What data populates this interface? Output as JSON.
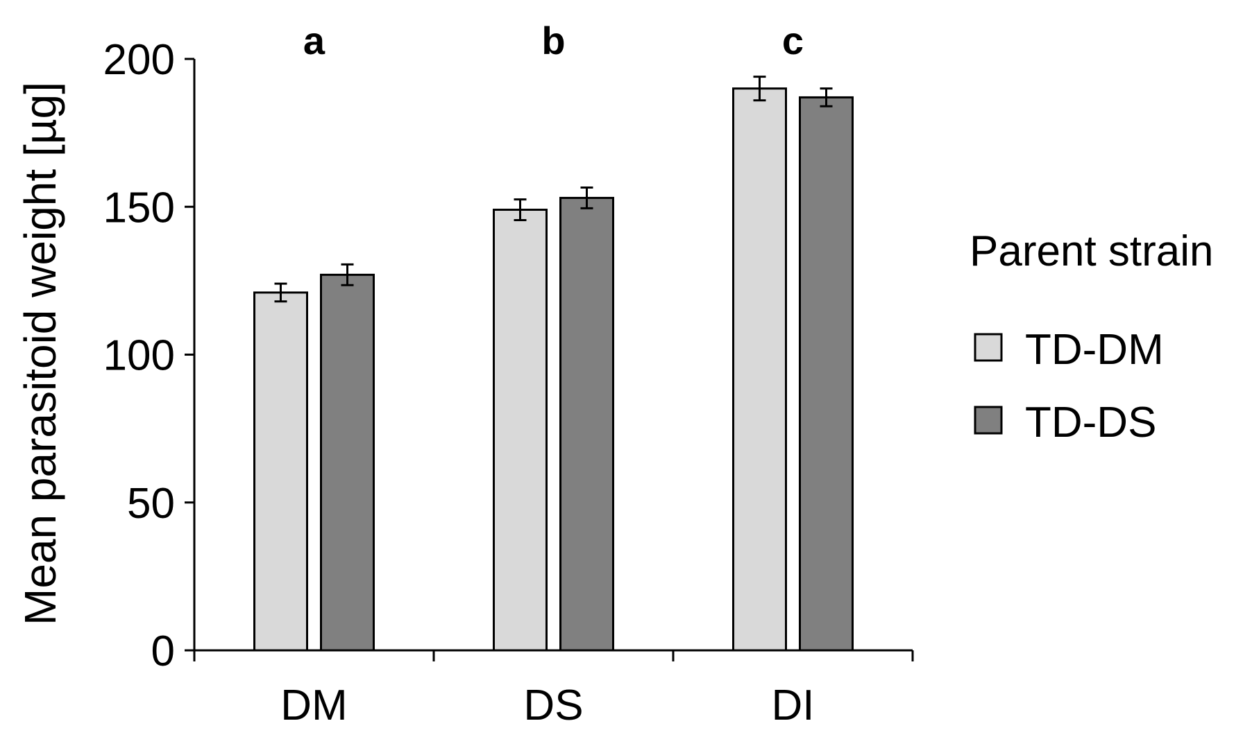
{
  "chart_data": {
    "type": "bar",
    "title": "",
    "xlabel": "",
    "ylabel": "Mean parasitoid weight [µg]",
    "ylim": [
      0,
      200
    ],
    "yticks": [
      0,
      50,
      100,
      150,
      200
    ],
    "categories": [
      "DM",
      "DS",
      "DI"
    ],
    "significance_letters": [
      "a",
      "b",
      "c"
    ],
    "series": [
      {
        "name": "TD-DM",
        "color": "#d9d9d9",
        "values": [
          121,
          149,
          190
        ],
        "errors": [
          3,
          3.5,
          4
        ]
      },
      {
        "name": "TD-DS",
        "color": "#808080",
        "values": [
          127,
          153,
          187
        ],
        "errors": [
          3.5,
          3.5,
          3
        ]
      }
    ],
    "legend": {
      "title": "Parent strain",
      "position": "right"
    },
    "grid": false
  }
}
